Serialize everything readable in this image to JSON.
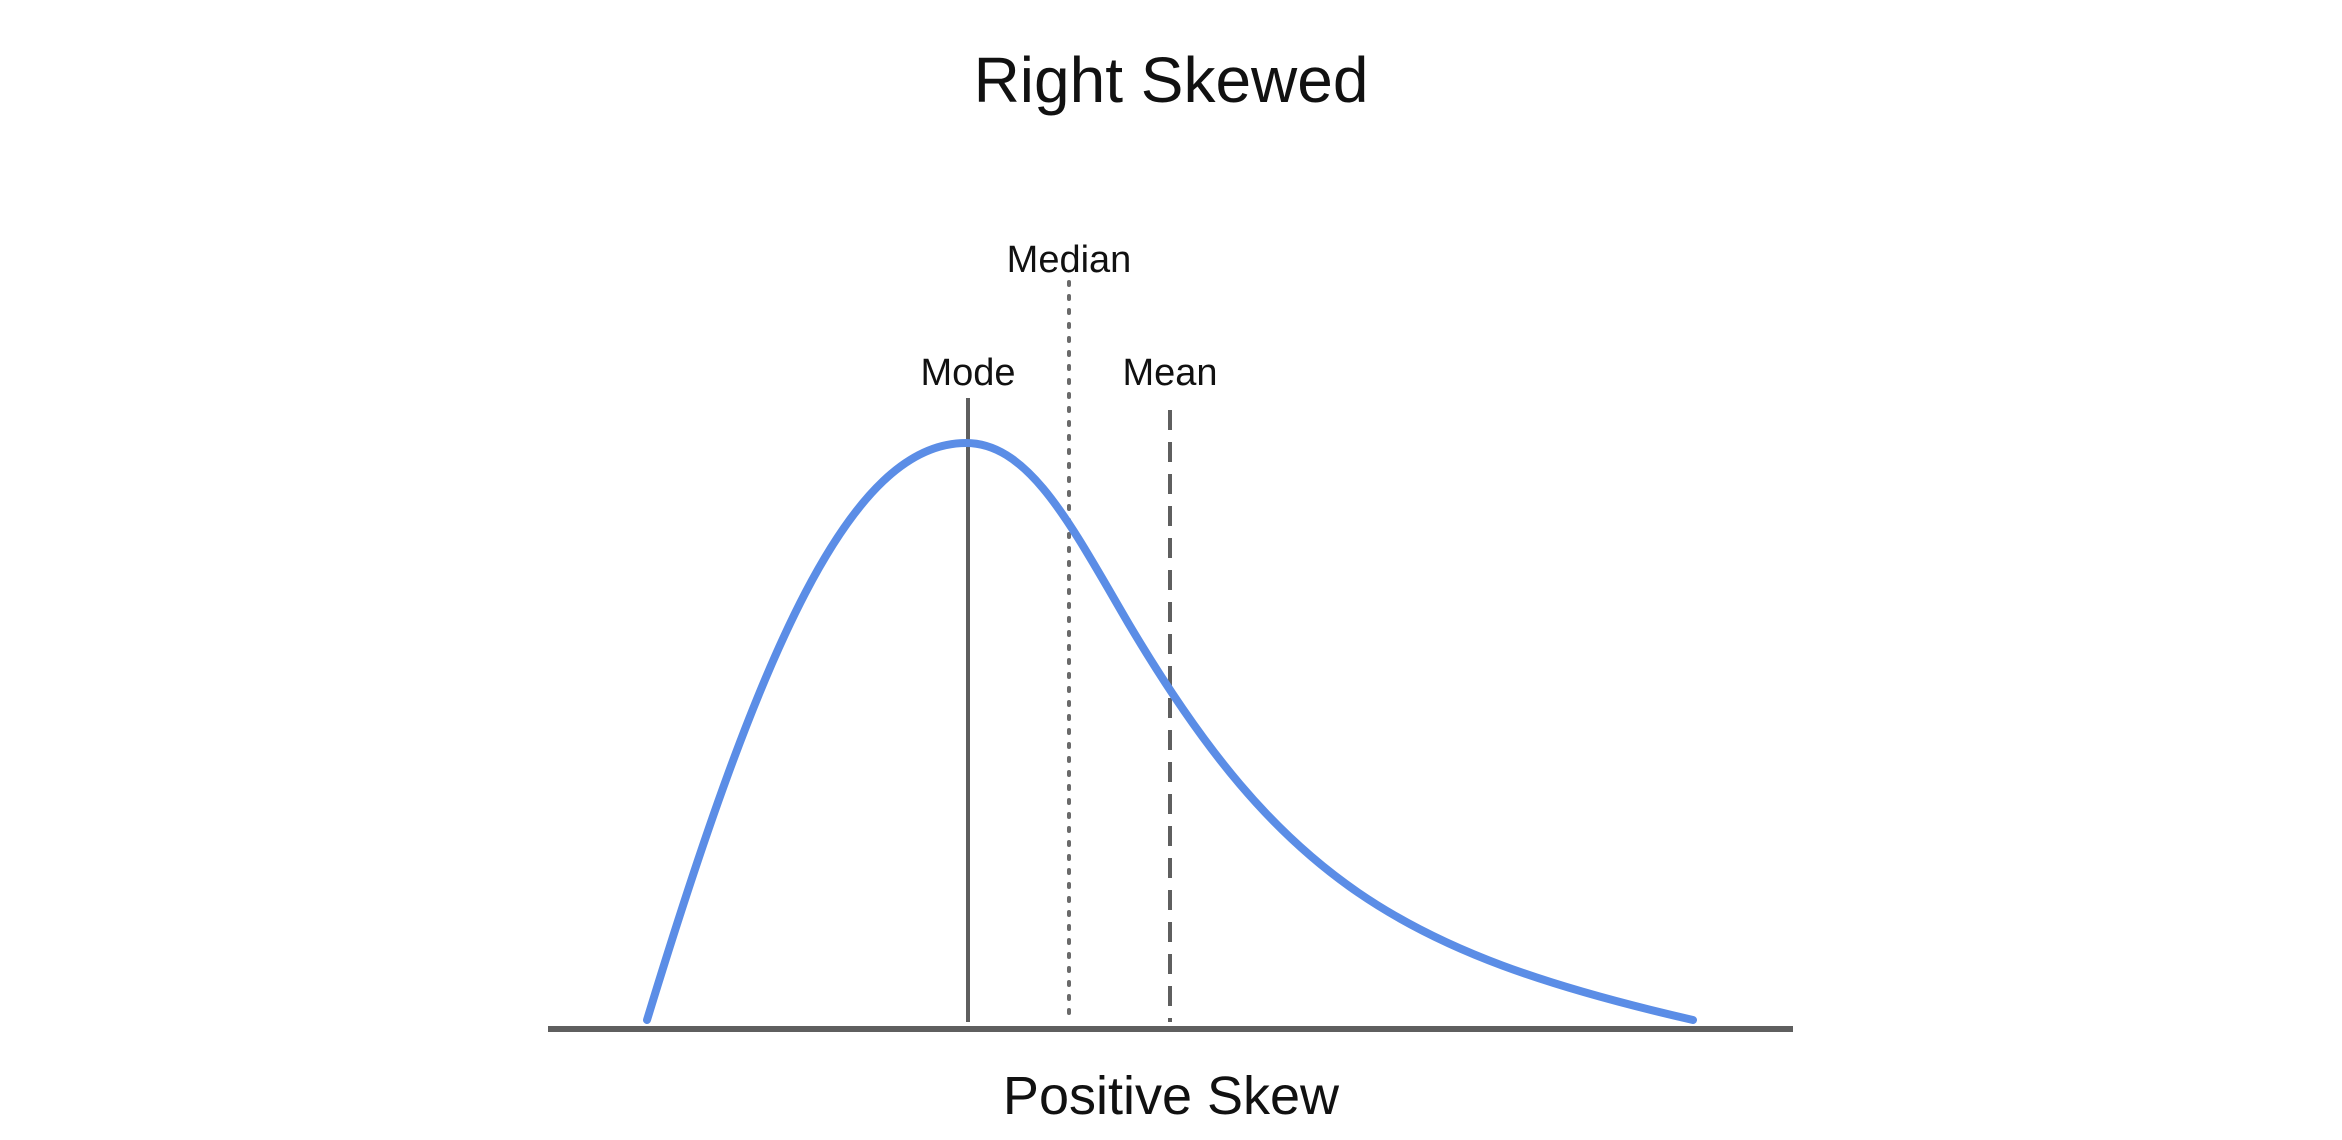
{
  "title": "Right Skewed",
  "caption": "Positive Skew",
  "markers": {
    "mode": {
      "label": "Mode",
      "line_style": "solid"
    },
    "median": {
      "label": "Median",
      "line_style": "dotted"
    },
    "mean": {
      "label": "Mean",
      "line_style": "dashed"
    }
  },
  "colors": {
    "curve": "#5B8DE6",
    "marker_line": "#5f5f5f",
    "baseline": "#5f5f5f",
    "text": "#111111"
  }
}
